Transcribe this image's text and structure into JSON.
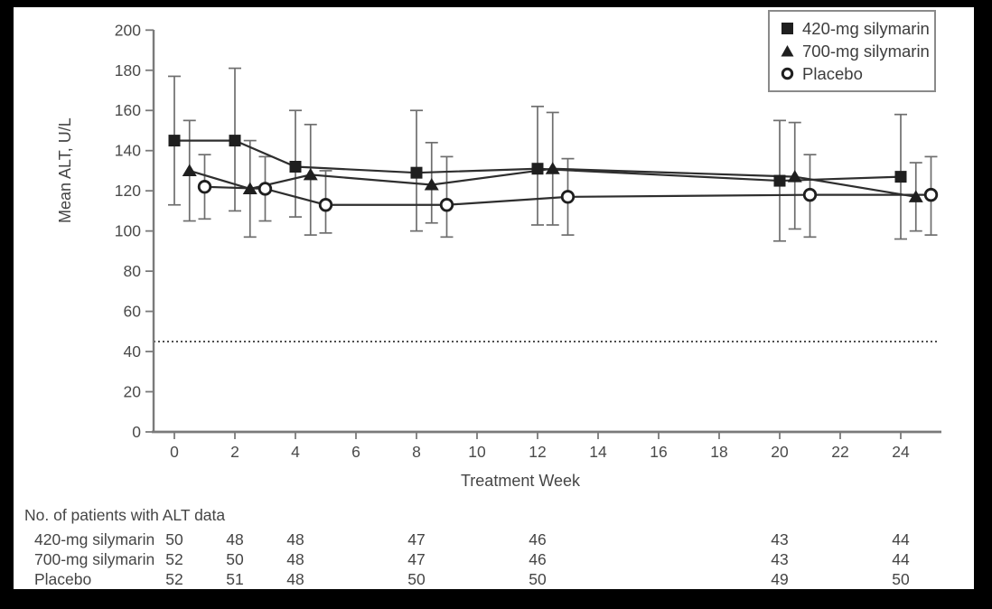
{
  "chart_data": {
    "type": "line",
    "title": "",
    "xlabel": "Treatment Week",
    "ylabel": "Mean ALT, U/L",
    "xlim": [
      -1,
      26.5
    ],
    "ylim": [
      0,
      200
    ],
    "x_ticks": [
      0,
      2,
      4,
      6,
      8,
      10,
      12,
      14,
      16,
      18,
      20,
      22,
      24
    ],
    "y_ticks": [
      0,
      20,
      40,
      60,
      80,
      100,
      120,
      140,
      160,
      180,
      200
    ],
    "grid": false,
    "legend_position": "top-right",
    "reference_line": {
      "y": 45,
      "style": "dotted"
    },
    "series": [
      {
        "name": "420-mg silymarin",
        "marker": "filled-square",
        "x_offset": 0,
        "x": [
          0,
          2,
          4,
          8,
          12,
          20,
          24
        ],
        "y": [
          145,
          145,
          132,
          129,
          131,
          125,
          127
        ],
        "err_lo": [
          113,
          110,
          107,
          100,
          103,
          95,
          96
        ],
        "err_hi": [
          177,
          181,
          160,
          160,
          162,
          155,
          158
        ]
      },
      {
        "name": "700-mg silymarin",
        "marker": "filled-triangle",
        "x_offset": 0.5,
        "x": [
          0,
          2,
          4,
          8,
          12,
          20,
          24
        ],
        "y": [
          130,
          121,
          128,
          123,
          131,
          127,
          117
        ],
        "err_lo": [
          105,
          97,
          98,
          104,
          103,
          101,
          100
        ],
        "err_hi": [
          155,
          145,
          153,
          144,
          159,
          154,
          134
        ]
      },
      {
        "name": "Placebo",
        "marker": "open-circle",
        "x_offset": 1.0,
        "x": [
          0,
          2,
          4,
          8,
          12,
          20,
          24
        ],
        "y": [
          122,
          121,
          113,
          113,
          117,
          118,
          118
        ],
        "err_lo": [
          106,
          105,
          99,
          97,
          98,
          97,
          98
        ],
        "err_hi": [
          138,
          137,
          130,
          137,
          136,
          138,
          137
        ]
      }
    ],
    "patients_table": {
      "title": "No. of patients with ALT data",
      "weeks": [
        0,
        2,
        4,
        8,
        12,
        20,
        24
      ],
      "rows": [
        {
          "label": "420-mg silymarin",
          "counts": [
            50,
            48,
            48,
            47,
            46,
            43,
            44
          ]
        },
        {
          "label": "700-mg silymarin",
          "counts": [
            52,
            50,
            48,
            47,
            46,
            43,
            44
          ]
        },
        {
          "label": "Placebo",
          "counts": [
            52,
            51,
            48,
            50,
            50,
            49,
            50
          ]
        }
      ]
    },
    "colors": {
      "series_line": "#2e2e2e",
      "marker_fill": "#1f1f1f",
      "error_bar": "#6e6e6e",
      "axis": "#7a7a7a",
      "tick_text": "#4a4a4a",
      "reference_line": "#4f4f4f",
      "background": "#ffffff"
    }
  }
}
